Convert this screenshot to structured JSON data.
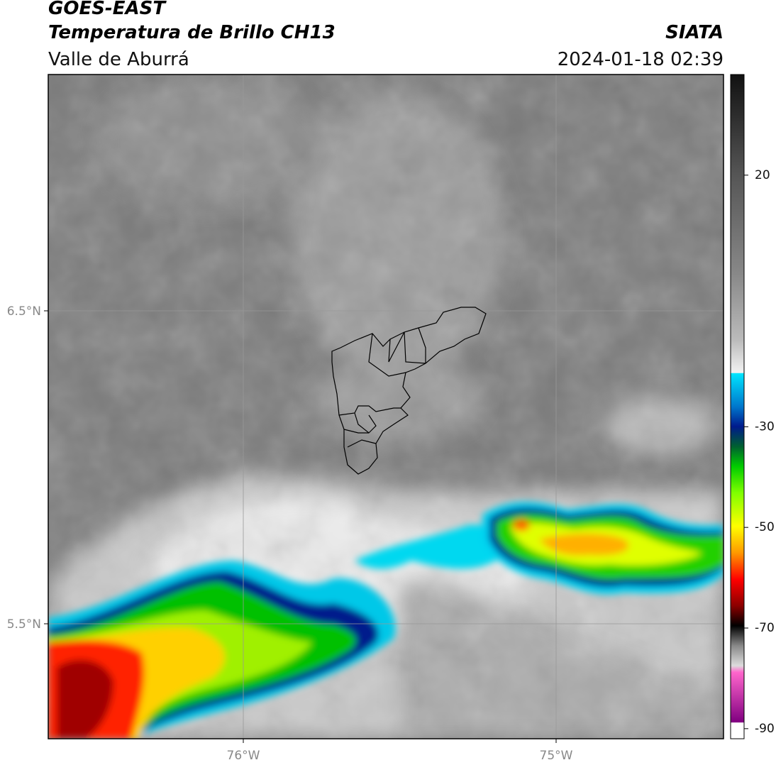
{
  "header": {
    "title": "GOES-EAST",
    "subtitle": "Temperatura de Brillo CH13",
    "region": "Valle de Aburrá",
    "source": "SIATA",
    "timestamp": "2024-01-18 02:39"
  },
  "map": {
    "lat_labels": [
      "6.5°N",
      "5.5°N"
    ],
    "lon_labels": [
      "76°W",
      "75°W"
    ]
  },
  "colorbar": {
    "range": [
      -92,
      40
    ],
    "ticks": [
      20,
      -30,
      -50,
      -70,
      -90
    ]
  }
}
